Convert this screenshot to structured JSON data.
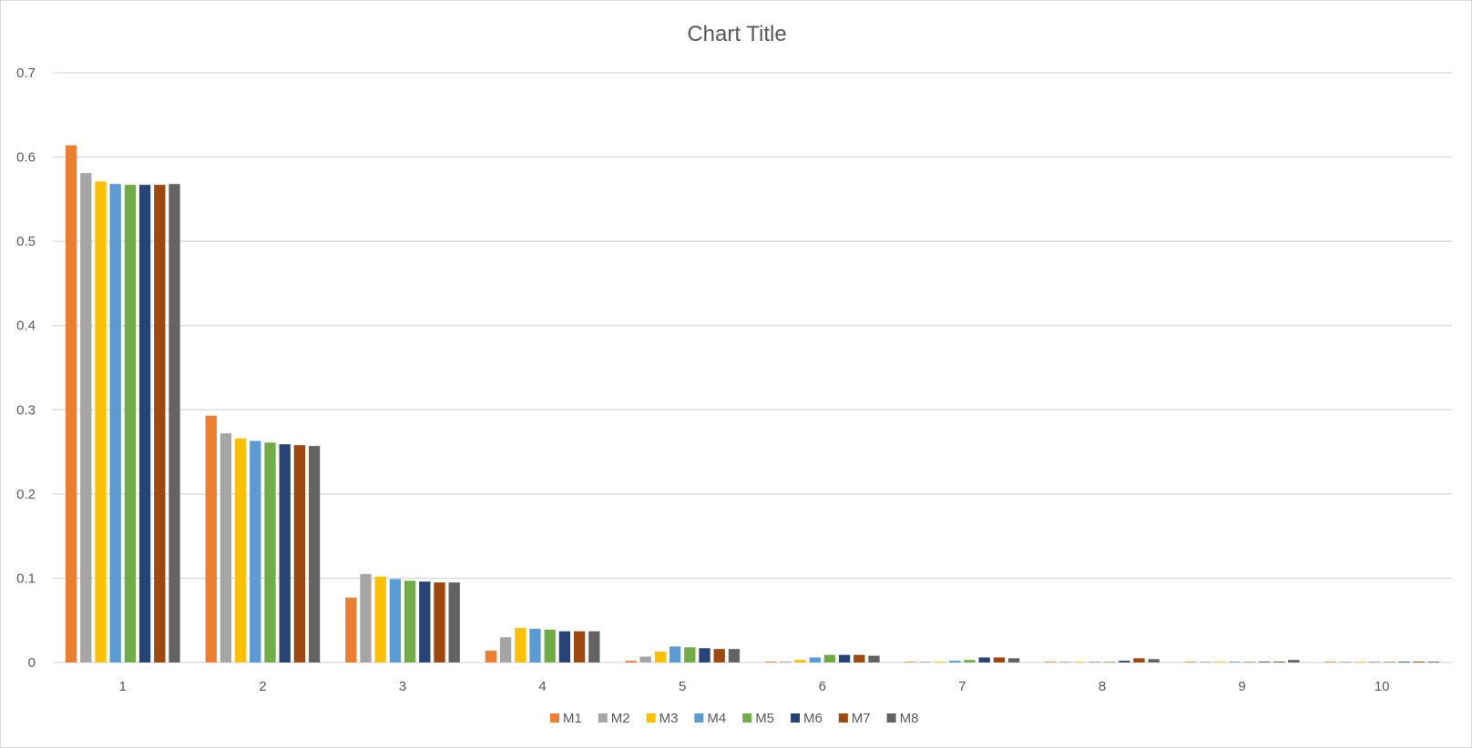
{
  "chart_data": {
    "type": "bar",
    "title": "Chart Title",
    "xlabel": "",
    "ylabel": "",
    "ylim": [
      0,
      0.7
    ],
    "y_ticks": [
      "0",
      "0.1",
      "0.2",
      "0.3",
      "0.4",
      "0.5",
      "0.6",
      "0.7"
    ],
    "y_tick_values": [
      0,
      0.1,
      0.2,
      0.3,
      0.4,
      0.5,
      0.6,
      0.7
    ],
    "grid": true,
    "legend_position": "bottom",
    "categories": [
      "1",
      "2",
      "3",
      "4",
      "5",
      "6",
      "7",
      "8",
      "9",
      "10"
    ],
    "series": [
      {
        "name": "M1",
        "color": "#ED7D31",
        "values": [
          0.614,
          0.293,
          0.077,
          0.014,
          0.002,
          0.001,
          0.0005,
          0.0005,
          0.0005,
          0.0005
        ]
      },
      {
        "name": "M2",
        "color": "#A5A5A5",
        "values": [
          0.581,
          0.272,
          0.105,
          0.03,
          0.007,
          0.001,
          0.0005,
          0.0005,
          0.0005,
          0.0005
        ]
      },
      {
        "name": "M3",
        "color": "#FFC000",
        "values": [
          0.571,
          0.266,
          0.102,
          0.041,
          0.013,
          0.003,
          0.0005,
          0.0005,
          0.0005,
          0.0005
        ]
      },
      {
        "name": "M4",
        "color": "#5B9BD5",
        "values": [
          0.568,
          0.263,
          0.099,
          0.04,
          0.019,
          0.006,
          0.002,
          0.0005,
          0.0005,
          0.0005
        ]
      },
      {
        "name": "M5",
        "color": "#70AD47",
        "values": [
          0.567,
          0.261,
          0.097,
          0.039,
          0.018,
          0.009,
          0.003,
          0.0005,
          0.0005,
          0.0005
        ]
      },
      {
        "name": "M6",
        "color": "#264478",
        "values": [
          0.567,
          0.259,
          0.096,
          0.037,
          0.017,
          0.009,
          0.006,
          0.002,
          0.0005,
          0.0005
        ]
      },
      {
        "name": "M7",
        "color": "#9E480E",
        "values": [
          0.567,
          0.258,
          0.095,
          0.037,
          0.016,
          0.009,
          0.006,
          0.005,
          0.001,
          0.001
        ]
      },
      {
        "name": "M8",
        "color": "#636363",
        "values": [
          0.568,
          0.257,
          0.095,
          0.037,
          0.016,
          0.008,
          0.005,
          0.004,
          0.003,
          0.001
        ]
      }
    ]
  }
}
